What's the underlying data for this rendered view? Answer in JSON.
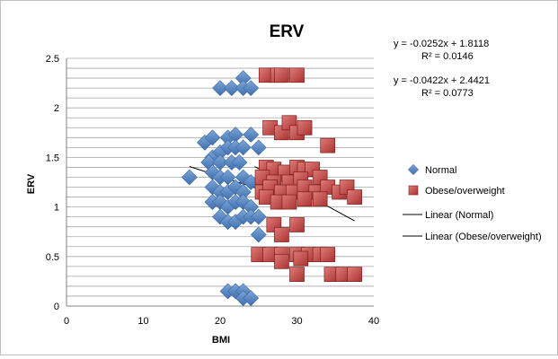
{
  "chart_data": {
    "type": "scatter",
    "title": "ERV",
    "xlabel": "BMI",
    "ylabel": "ERV",
    "xlim": [
      0,
      40
    ],
    "ylim": [
      0,
      2.5
    ],
    "xticks": [
      "0",
      "10",
      "20",
      "30",
      "40"
    ],
    "yticks": [
      "0",
      "0.5",
      "1",
      "1.5",
      "2",
      "2.5"
    ],
    "grid": "horizontal",
    "legend_position": "right",
    "series": [
      {
        "name": "Normal",
        "marker": "diamond",
        "color": "#4f81bd",
        "points": [
          [
            20,
            2.2
          ],
          [
            21.5,
            2.2
          ],
          [
            23,
            2.3
          ],
          [
            23,
            2.2
          ],
          [
            24,
            2.2
          ],
          [
            18,
            1.65
          ],
          [
            19,
            1.7
          ],
          [
            21,
            1.7
          ],
          [
            22,
            1.73
          ],
          [
            24,
            1.73
          ],
          [
            25,
            1.6
          ],
          [
            19,
            1.5
          ],
          [
            20,
            1.55
          ],
          [
            21,
            1.6
          ],
          [
            22,
            1.6
          ],
          [
            23,
            1.6
          ],
          [
            18.5,
            1.45
          ],
          [
            20,
            1.45
          ],
          [
            21.5,
            1.45
          ],
          [
            22.5,
            1.45
          ],
          [
            16,
            1.3
          ],
          [
            19,
            1.35
          ],
          [
            20,
            1.3
          ],
          [
            21,
            1.3
          ],
          [
            23,
            1.3
          ],
          [
            24,
            1.25
          ],
          [
            19,
            1.2
          ],
          [
            20,
            1.15
          ],
          [
            21,
            1.15
          ],
          [
            22,
            1.2
          ],
          [
            23,
            1.15
          ],
          [
            19,
            1.05
          ],
          [
            20,
            1.05
          ],
          [
            21,
            1.0
          ],
          [
            22,
            1.05
          ],
          [
            23,
            1.05
          ],
          [
            24,
            1.0
          ],
          [
            20,
            0.9
          ],
          [
            21,
            0.85
          ],
          [
            22,
            0.85
          ],
          [
            23,
            0.9
          ],
          [
            24,
            0.9
          ],
          [
            25,
            0.9
          ],
          [
            25,
            0.72
          ],
          [
            21,
            0.15
          ],
          [
            22,
            0.15
          ],
          [
            23,
            0.15
          ],
          [
            23,
            0.08
          ],
          [
            24,
            0.08
          ]
        ]
      },
      {
        "name": "Obese/overweight",
        "marker": "square",
        "color": "#c0504d",
        "points": [
          [
            26,
            2.33
          ],
          [
            27.5,
            2.33
          ],
          [
            28,
            2.33
          ],
          [
            30,
            2.33
          ],
          [
            26.5,
            1.8
          ],
          [
            28,
            1.75
          ],
          [
            29,
            1.85
          ],
          [
            30,
            1.75
          ],
          [
            31,
            1.8
          ],
          [
            34,
            1.62
          ],
          [
            26,
            1.4
          ],
          [
            27,
            1.38
          ],
          [
            28.5,
            1.35
          ],
          [
            30,
            1.4
          ],
          [
            31,
            1.38
          ],
          [
            32,
            1.38
          ],
          [
            25.5,
            1.3
          ],
          [
            27,
            1.25
          ],
          [
            29,
            1.25
          ],
          [
            30.5,
            1.28
          ],
          [
            33,
            1.3
          ],
          [
            25.5,
            1.15
          ],
          [
            26.5,
            1.2
          ],
          [
            28,
            1.15
          ],
          [
            29.5,
            1.15
          ],
          [
            31,
            1.2
          ],
          [
            32.5,
            1.15
          ],
          [
            34,
            1.2
          ],
          [
            35.5,
            1.15
          ],
          [
            36.5,
            1.2
          ],
          [
            26,
            1.1
          ],
          [
            27.5,
            1.05
          ],
          [
            29,
            1.05
          ],
          [
            31,
            1.08
          ],
          [
            33,
            1.08
          ],
          [
            37.5,
            1.1
          ],
          [
            27,
            0.82
          ],
          [
            28,
            0.72
          ],
          [
            30,
            0.82
          ],
          [
            25,
            0.52
          ],
          [
            26.5,
            0.52
          ],
          [
            28,
            0.52
          ],
          [
            30,
            0.52
          ],
          [
            31.5,
            0.52
          ],
          [
            33,
            0.52
          ],
          [
            34,
            0.52
          ],
          [
            28,
            0.45
          ],
          [
            30.5,
            0.48
          ],
          [
            30,
            0.32
          ],
          [
            34.5,
            0.32
          ],
          [
            36,
            0.32
          ],
          [
            37.5,
            0.32
          ]
        ]
      }
    ],
    "trendlines": [
      {
        "name": "Linear (Normal)",
        "series": "Normal",
        "slope": -0.0252,
        "intercept": 1.8118,
        "x_range": [
          16,
          25
        ],
        "equation": "y = -0.0252x + 1.8118",
        "r2": "R² = 0.0146"
      },
      {
        "name": "Linear (Obese/overweight)",
        "series": "Obese/overweight",
        "slope": -0.0422,
        "intercept": 2.4421,
        "x_range": [
          24.5,
          37.5
        ],
        "equation": "y = -0.0422x + 2.4421",
        "r2": "R² = 0.0773"
      }
    ]
  }
}
